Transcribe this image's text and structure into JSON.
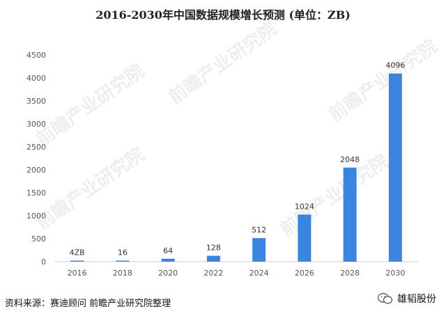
{
  "chart_data": {
    "type": "bar",
    "title": "2016-2030年中国数据规模增长预测 (单位：ZB)",
    "categories": [
      "2016",
      "2018",
      "2020",
      "2022",
      "2024",
      "2026",
      "2028",
      "2030"
    ],
    "values": [
      4,
      16,
      64,
      128,
      512,
      1024,
      2048,
      4096
    ],
    "data_labels": [
      "4ZB",
      "16",
      "64",
      "128",
      "512",
      "1024",
      "2048",
      "4096"
    ],
    "y_ticks": [
      "0",
      "500",
      "1000",
      "1500",
      "2000",
      "2500",
      "3000",
      "3500",
      "4000",
      "4500"
    ],
    "ylim": [
      0,
      4500
    ],
    "grid": false,
    "legend": "none",
    "bar_color": "#3b84e0"
  },
  "source": "资料来源：赛迪顾问 前瞻产业研究院整理",
  "account": "雄韬股份",
  "watermark": "前瞻产业研究院"
}
